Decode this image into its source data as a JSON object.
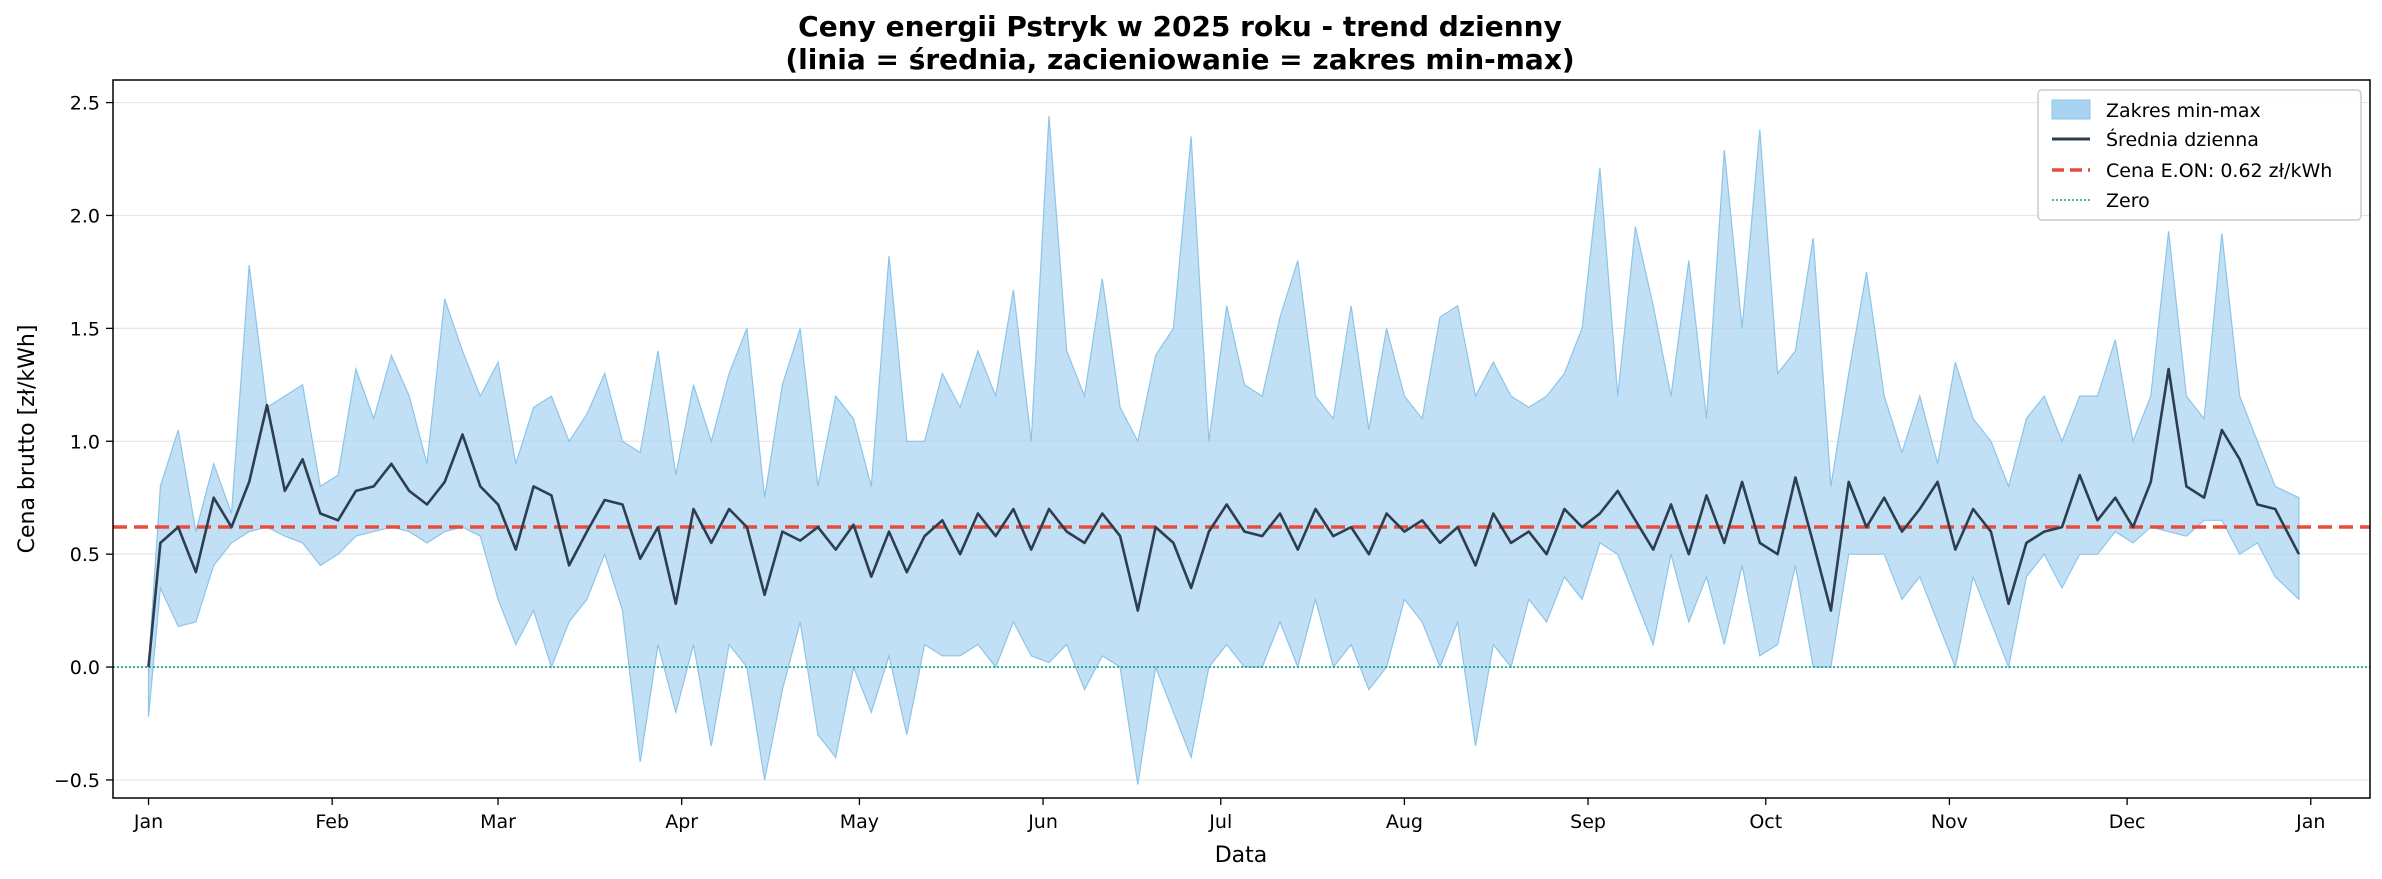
{
  "chart_data": {
    "type": "line",
    "title": "Ceny energii Pstryk w 2025 roku - trend dzienny",
    "subtitle": "(linia = średnia, zacieniowanie = zakres min-max)",
    "xlabel": "Data",
    "ylabel": "Cena brutto [zł/kWh]",
    "x_range": [
      "2024-12-26",
      "2026-01-11"
    ],
    "ylim": [
      -0.58,
      2.6
    ],
    "x_ticks": [
      {
        "date": "2025-01-01",
        "label": "Jan"
      },
      {
        "date": "2025-02-01",
        "label": "Feb"
      },
      {
        "date": "2025-03-01",
        "label": "Mar"
      },
      {
        "date": "2025-04-01",
        "label": "Apr"
      },
      {
        "date": "2025-05-01",
        "label": "May"
      },
      {
        "date": "2025-06-01",
        "label": "Jun"
      },
      {
        "date": "2025-07-01",
        "label": "Jul"
      },
      {
        "date": "2025-08-01",
        "label": "Aug"
      },
      {
        "date": "2025-09-01",
        "label": "Sep"
      },
      {
        "date": "2025-10-01",
        "label": "Oct"
      },
      {
        "date": "2025-11-01",
        "label": "Nov"
      },
      {
        "date": "2025-12-01",
        "label": "Dec"
      },
      {
        "date": "2026-01-01",
        "label": "Jan"
      }
    ],
    "y_ticks": [
      -0.5,
      0.0,
      0.5,
      1.0,
      1.5,
      2.0,
      2.5
    ],
    "y_tick_labels": [
      "−0.5",
      "0.0",
      "0.5",
      "1.0",
      "1.5",
      "2.0",
      "2.5"
    ],
    "grid": "horizontal",
    "legend_position": "top-right",
    "legend": [
      "Zakres min-max",
      "Średnia dzienna",
      "Cena E.ON: 0.62 zł/kWh",
      "Zero"
    ],
    "colors": {
      "band": "#a8d3f1",
      "band_edge": "#8cc4ea",
      "mean": "#2c3e50",
      "eon": "#e74c3c",
      "zero": "#16a085",
      "grid": "#e6e6e6"
    },
    "series": [
      {
        "name": "Średnia dzienna",
        "x": [
          "2025-01-01",
          "2025-01-03",
          "2025-01-06",
          "2025-01-09",
          "2025-01-12",
          "2025-01-15",
          "2025-01-18",
          "2025-01-21",
          "2025-01-24",
          "2025-01-27",
          "2025-01-30",
          "2025-02-02",
          "2025-02-05",
          "2025-02-08",
          "2025-02-11",
          "2025-02-14",
          "2025-02-17",
          "2025-02-20",
          "2025-02-23",
          "2025-02-26",
          "2025-03-01",
          "2025-03-04",
          "2025-03-07",
          "2025-03-10",
          "2025-03-13",
          "2025-03-16",
          "2025-03-19",
          "2025-03-22",
          "2025-03-25",
          "2025-03-28",
          "2025-03-31",
          "2025-04-03",
          "2025-04-06",
          "2025-04-09",
          "2025-04-12",
          "2025-04-15",
          "2025-04-18",
          "2025-04-21",
          "2025-04-24",
          "2025-04-27",
          "2025-04-30",
          "2025-05-03",
          "2025-05-06",
          "2025-05-09",
          "2025-05-12",
          "2025-05-15",
          "2025-05-18",
          "2025-05-21",
          "2025-05-24",
          "2025-05-27",
          "2025-05-30",
          "2025-06-02",
          "2025-06-05",
          "2025-06-08",
          "2025-06-11",
          "2025-06-14",
          "2025-06-17",
          "2025-06-20",
          "2025-06-23",
          "2025-06-26",
          "2025-06-29",
          "2025-07-02",
          "2025-07-05",
          "2025-07-08",
          "2025-07-11",
          "2025-07-14",
          "2025-07-17",
          "2025-07-20",
          "2025-07-23",
          "2025-07-26",
          "2025-07-29",
          "2025-08-01",
          "2025-08-04",
          "2025-08-07",
          "2025-08-10",
          "2025-08-13",
          "2025-08-16",
          "2025-08-19",
          "2025-08-22",
          "2025-08-25",
          "2025-08-28",
          "2025-08-31",
          "2025-09-03",
          "2025-09-06",
          "2025-09-09",
          "2025-09-12",
          "2025-09-15",
          "2025-09-18",
          "2025-09-21",
          "2025-09-24",
          "2025-09-27",
          "2025-09-30",
          "2025-10-03",
          "2025-10-06",
          "2025-10-09",
          "2025-10-12",
          "2025-10-15",
          "2025-10-18",
          "2025-10-21",
          "2025-10-24",
          "2025-10-27",
          "2025-10-30",
          "2025-11-02",
          "2025-11-05",
          "2025-11-08",
          "2025-11-11",
          "2025-11-14",
          "2025-11-17",
          "2025-11-20",
          "2025-11-23",
          "2025-11-26",
          "2025-11-29",
          "2025-12-02",
          "2025-12-05",
          "2025-12-08",
          "2025-12-11",
          "2025-12-14",
          "2025-12-17",
          "2025-12-20",
          "2025-12-23",
          "2025-12-26",
          "2025-12-30"
        ],
        "values": [
          0.0,
          0.55,
          0.62,
          0.42,
          0.75,
          0.62,
          0.82,
          1.16,
          0.78,
          0.92,
          0.68,
          0.65,
          0.78,
          0.8,
          0.9,
          0.78,
          0.72,
          0.82,
          1.03,
          0.8,
          0.72,
          0.52,
          0.8,
          0.76,
          0.45,
          0.6,
          0.74,
          0.72,
          0.48,
          0.62,
          0.28,
          0.7,
          0.55,
          0.7,
          0.62,
          0.32,
          0.6,
          0.56,
          0.62,
          0.52,
          0.63,
          0.4,
          0.6,
          0.42,
          0.58,
          0.65,
          0.5,
          0.68,
          0.58,
          0.7,
          0.52,
          0.7,
          0.6,
          0.55,
          0.68,
          0.58,
          0.25,
          0.62,
          0.55,
          0.35,
          0.6,
          0.72,
          0.6,
          0.58,
          0.68,
          0.52,
          0.7,
          0.58,
          0.62,
          0.5,
          0.68,
          0.6,
          0.65,
          0.55,
          0.62,
          0.45,
          0.68,
          0.55,
          0.6,
          0.5,
          0.7,
          0.62,
          0.68,
          0.78,
          0.65,
          0.52,
          0.72,
          0.5,
          0.76,
          0.55,
          0.82,
          0.55,
          0.5,
          0.84,
          0.55,
          0.25,
          0.82,
          0.62,
          0.75,
          0.6,
          0.7,
          0.82,
          0.52,
          0.7,
          0.6,
          0.28,
          0.55,
          0.6,
          0.62,
          0.85,
          0.65,
          0.75,
          0.62,
          0.82,
          1.32,
          0.8,
          0.75,
          1.05,
          0.92,
          0.72,
          0.7,
          0.5
        ]
      },
      {
        "name": "Zakres min-max",
        "x": [
          "2025-01-01",
          "2025-01-03",
          "2025-01-06",
          "2025-01-09",
          "2025-01-12",
          "2025-01-15",
          "2025-01-18",
          "2025-01-21",
          "2025-01-24",
          "2025-01-27",
          "2025-01-30",
          "2025-02-02",
          "2025-02-05",
          "2025-02-08",
          "2025-02-11",
          "2025-02-14",
          "2025-02-17",
          "2025-02-20",
          "2025-02-23",
          "2025-02-26",
          "2025-03-01",
          "2025-03-04",
          "2025-03-07",
          "2025-03-10",
          "2025-03-13",
          "2025-03-16",
          "2025-03-19",
          "2025-03-22",
          "2025-03-25",
          "2025-03-28",
          "2025-03-31",
          "2025-04-03",
          "2025-04-06",
          "2025-04-09",
          "2025-04-12",
          "2025-04-15",
          "2025-04-18",
          "2025-04-21",
          "2025-04-24",
          "2025-04-27",
          "2025-04-30",
          "2025-05-03",
          "2025-05-06",
          "2025-05-09",
          "2025-05-12",
          "2025-05-15",
          "2025-05-18",
          "2025-05-21",
          "2025-05-24",
          "2025-05-27",
          "2025-05-30",
          "2025-06-02",
          "2025-06-05",
          "2025-06-08",
          "2025-06-11",
          "2025-06-14",
          "2025-06-17",
          "2025-06-20",
          "2025-06-23",
          "2025-06-26",
          "2025-06-29",
          "2025-07-02",
          "2025-07-05",
          "2025-07-08",
          "2025-07-11",
          "2025-07-14",
          "2025-07-17",
          "2025-07-20",
          "2025-07-23",
          "2025-07-26",
          "2025-07-29",
          "2025-08-01",
          "2025-08-04",
          "2025-08-07",
          "2025-08-10",
          "2025-08-13",
          "2025-08-16",
          "2025-08-19",
          "2025-08-22",
          "2025-08-25",
          "2025-08-28",
          "2025-08-31",
          "2025-09-03",
          "2025-09-06",
          "2025-09-09",
          "2025-09-12",
          "2025-09-15",
          "2025-09-18",
          "2025-09-21",
          "2025-09-24",
          "2025-09-27",
          "2025-09-30",
          "2025-10-03",
          "2025-10-06",
          "2025-10-09",
          "2025-10-12",
          "2025-10-15",
          "2025-10-18",
          "2025-10-21",
          "2025-10-24",
          "2025-10-27",
          "2025-10-30",
          "2025-11-02",
          "2025-11-05",
          "2025-11-08",
          "2025-11-11",
          "2025-11-14",
          "2025-11-17",
          "2025-11-20",
          "2025-11-23",
          "2025-11-26",
          "2025-11-29",
          "2025-12-02",
          "2025-12-05",
          "2025-12-08",
          "2025-12-11",
          "2025-12-14",
          "2025-12-17",
          "2025-12-20",
          "2025-12-23",
          "2025-12-26",
          "2025-12-30"
        ],
        "min": [
          -0.22,
          0.35,
          0.18,
          0.2,
          0.45,
          0.55,
          0.6,
          0.62,
          0.58,
          0.55,
          0.45,
          0.5,
          0.58,
          0.6,
          0.62,
          0.6,
          0.55,
          0.6,
          0.62,
          0.58,
          0.3,
          0.1,
          0.25,
          0.0,
          0.2,
          0.3,
          0.5,
          0.25,
          -0.42,
          0.1,
          -0.2,
          0.1,
          -0.35,
          0.1,
          0.0,
          -0.5,
          -0.1,
          0.2,
          -0.3,
          -0.4,
          0.0,
          -0.2,
          0.05,
          -0.3,
          0.1,
          0.05,
          0.05,
          0.1,
          0.0,
          0.2,
          0.05,
          0.02,
          0.1,
          -0.1,
          0.05,
          0.0,
          -0.52,
          0.0,
          -0.2,
          -0.4,
          0.0,
          0.1,
          0.0,
          0.0,
          0.2,
          0.0,
          0.3,
          0.0,
          0.1,
          -0.1,
          0.0,
          0.3,
          0.2,
          0.0,
          0.2,
          -0.35,
          0.1,
          0.0,
          0.3,
          0.2,
          0.4,
          0.3,
          0.55,
          0.5,
          0.3,
          0.1,
          0.5,
          0.2,
          0.4,
          0.1,
          0.45,
          0.05,
          0.1,
          0.45,
          0.0,
          0.0,
          0.5,
          0.5,
          0.5,
          0.3,
          0.4,
          0.2,
          0.0,
          0.4,
          0.2,
          0.0,
          0.4,
          0.5,
          0.35,
          0.5,
          0.5,
          0.6,
          0.55,
          0.62,
          0.6,
          0.58,
          0.65,
          0.65,
          0.5,
          0.55,
          0.4,
          0.3
        ],
        "max": [
          0.0,
          0.8,
          1.05,
          0.6,
          0.9,
          0.68,
          1.78,
          1.15,
          1.2,
          1.25,
          0.8,
          0.85,
          1.32,
          1.1,
          1.38,
          1.2,
          0.9,
          1.63,
          1.4,
          1.2,
          1.35,
          0.9,
          1.15,
          1.2,
          1.0,
          1.12,
          1.3,
          1.0,
          0.95,
          1.4,
          0.85,
          1.25,
          1.0,
          1.3,
          1.5,
          0.75,
          1.25,
          1.5,
          0.8,
          1.2,
          1.1,
          0.8,
          1.82,
          1.0,
          1.0,
          1.3,
          1.15,
          1.4,
          1.2,
          1.67,
          1.0,
          2.44,
          1.4,
          1.2,
          1.72,
          1.15,
          1.0,
          1.38,
          1.5,
          2.35,
          1.0,
          1.6,
          1.25,
          1.2,
          1.55,
          1.8,
          1.2,
          1.1,
          1.6,
          1.05,
          1.5,
          1.2,
          1.1,
          1.55,
          1.6,
          1.2,
          1.35,
          1.2,
          1.15,
          1.2,
          1.3,
          1.5,
          2.21,
          1.2,
          1.95,
          1.6,
          1.2,
          1.8,
          1.1,
          2.29,
          1.5,
          2.38,
          1.3,
          1.4,
          1.9,
          0.8,
          1.3,
          1.75,
          1.2,
          0.95,
          1.2,
          0.9,
          1.35,
          1.1,
          1.0,
          0.8,
          1.1,
          1.2,
          1.0,
          1.2,
          1.2,
          1.45,
          1.0,
          1.2,
          1.93,
          1.2,
          1.1,
          1.92,
          1.2,
          1.0,
          0.8,
          0.75
        ]
      },
      {
        "name": "Cena E.ON: 0.62 zł/kWh",
        "values": [
          0.62
        ]
      },
      {
        "name": "Zero",
        "values": [
          0.0
        ]
      }
    ]
  }
}
